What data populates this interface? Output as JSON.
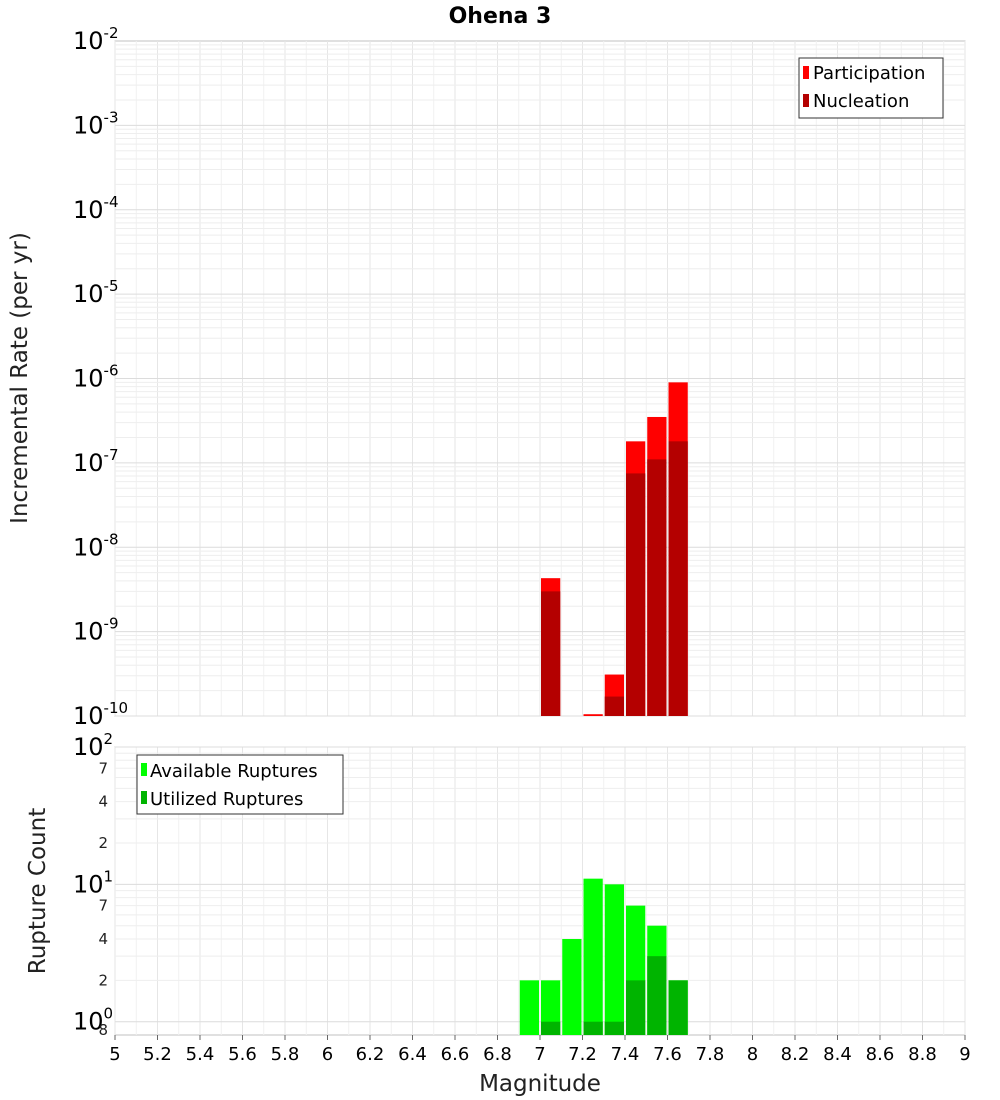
{
  "chart_data": [
    {
      "type": "bar",
      "title": "Ohena 3",
      "xlabel": "",
      "ylabel": "Incremental Rate (per yr)",
      "yscale": "log",
      "ylim": [
        1e-10,
        0.01
      ],
      "xlim": [
        5,
        9
      ],
      "y_ticks": [
        {
          "base": "10",
          "exp": "-2"
        },
        {
          "base": "10",
          "exp": "-3"
        },
        {
          "base": "10",
          "exp": "-4"
        },
        {
          "base": "10",
          "exp": "-5"
        },
        {
          "base": "10",
          "exp": "-6"
        },
        {
          "base": "10",
          "exp": "-7"
        },
        {
          "base": "10",
          "exp": "-8"
        },
        {
          "base": "10",
          "exp": "-9"
        },
        {
          "base": "10",
          "exp": "-10"
        }
      ],
      "grid": true,
      "legend_position": "top-right",
      "series": [
        {
          "name": "Participation",
          "color": "#ff0000",
          "x": [
            7.05,
            7.25,
            7.35,
            7.45,
            7.55,
            7.65
          ],
          "values": [
            4.3e-09,
            1.05e-10,
            3.1e-10,
            1.8e-07,
            3.5e-07,
            9e-07
          ]
        },
        {
          "name": "Nucleation",
          "color": "#b40000",
          "x": [
            7.05,
            7.35,
            7.45,
            7.55,
            7.65
          ],
          "values": [
            3e-09,
            1.7e-10,
            7.5e-08,
            1.1e-07,
            1.8e-07
          ]
        }
      ]
    },
    {
      "type": "bar",
      "title": "",
      "xlabel": "Magnitude",
      "ylabel": "Rupture Count",
      "yscale": "log",
      "ylim": [
        0.8,
        100
      ],
      "xlim": [
        5,
        9
      ],
      "x_ticks": [
        "5",
        "5.2",
        "5.4",
        "5.6",
        "5.8",
        "6",
        "6.2",
        "6.4",
        "6.6",
        "6.8",
        "7",
        "7.2",
        "7.4",
        "7.6",
        "7.8",
        "8",
        "8.2",
        "8.4",
        "8.6",
        "8.8",
        "9"
      ],
      "y_major_ticks": [
        {
          "base": "10",
          "exp": "2"
        },
        {
          "base": "10",
          "exp": "1"
        },
        {
          "base": "10",
          "exp": "0"
        }
      ],
      "y_minor_ticks": [
        "7",
        "4",
        "2",
        "7",
        "4",
        "2",
        "8"
      ],
      "grid": true,
      "legend_position": "top-left",
      "series": [
        {
          "name": "Available Ruptures",
          "color": "#00ff00",
          "x": [
            6.95,
            7.05,
            7.15,
            7.25,
            7.35,
            7.45,
            7.55,
            7.65
          ],
          "values": [
            2,
            2,
            4,
            11,
            10,
            7,
            5,
            2
          ]
        },
        {
          "name": "Utilized Ruptures",
          "color": "#00b400",
          "x": [
            7.05,
            7.25,
            7.35,
            7.45,
            7.55,
            7.65
          ],
          "values": [
            1,
            1,
            1,
            2,
            3,
            2
          ]
        }
      ]
    }
  ]
}
